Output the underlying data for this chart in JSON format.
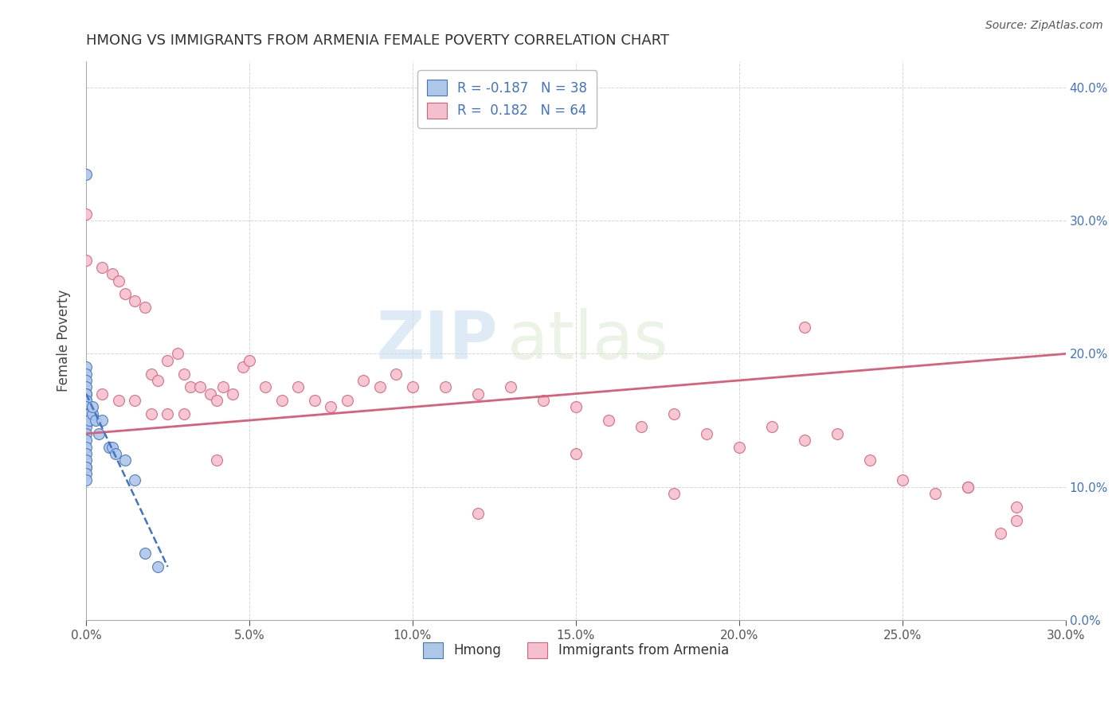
{
  "title": "HMONG VS IMMIGRANTS FROM ARMENIA FEMALE POVERTY CORRELATION CHART",
  "source": "Source: ZipAtlas.com",
  "ylabel_label": "Female Poverty",
  "legend_label1": "Hmong",
  "legend_label2": "Immigrants from Armenia",
  "R1": -0.187,
  "N1": 38,
  "R2": 0.182,
  "N2": 64,
  "xlim": [
    0.0,
    0.3
  ],
  "ylim": [
    0.0,
    0.42
  ],
  "xticks": [
    0.0,
    0.05,
    0.1,
    0.15,
    0.2,
    0.25,
    0.3
  ],
  "yticks": [
    0.0,
    0.1,
    0.2,
    0.3,
    0.4
  ],
  "color_blue": "#aec6e8",
  "color_pink": "#f5c0ce",
  "line_blue": "#4472c4",
  "line_pink": "#d9607a",
  "watermark_zip": "ZIP",
  "watermark_atlas": "atlas",
  "hmong_x": [
    0.0,
    0.0,
    0.0,
    0.0,
    0.0,
    0.0,
    0.0,
    0.0,
    0.0,
    0.0,
    0.0,
    0.0,
    0.0,
    0.0,
    0.0,
    0.0,
    0.0,
    0.0,
    0.0,
    0.0,
    0.0,
    0.0,
    0.0,
    0.0,
    0.001,
    0.001,
    0.002,
    0.002,
    0.003,
    0.004,
    0.005,
    0.007,
    0.008,
    0.009,
    0.012,
    0.015,
    0.018,
    0.022
  ],
  "hmong_y": [
    0.335,
    0.19,
    0.185,
    0.18,
    0.175,
    0.17,
    0.165,
    0.16,
    0.155,
    0.15,
    0.148,
    0.145,
    0.14,
    0.135,
    0.13,
    0.125,
    0.12,
    0.115,
    0.11,
    0.105,
    0.17,
    0.165,
    0.16,
    0.155,
    0.155,
    0.15,
    0.155,
    0.16,
    0.15,
    0.14,
    0.15,
    0.13,
    0.13,
    0.125,
    0.12,
    0.105,
    0.05,
    0.04
  ],
  "armenia_x": [
    0.0,
    0.0,
    0.0,
    0.005,
    0.008,
    0.01,
    0.012,
    0.015,
    0.018,
    0.02,
    0.022,
    0.025,
    0.028,
    0.03,
    0.032,
    0.035,
    0.038,
    0.04,
    0.042,
    0.045,
    0.048,
    0.05,
    0.055,
    0.06,
    0.065,
    0.07,
    0.075,
    0.08,
    0.085,
    0.09,
    0.095,
    0.1,
    0.11,
    0.12,
    0.13,
    0.14,
    0.15,
    0.16,
    0.17,
    0.18,
    0.19,
    0.2,
    0.21,
    0.22,
    0.23,
    0.24,
    0.25,
    0.26,
    0.27,
    0.28,
    0.285,
    0.005,
    0.01,
    0.015,
    0.02,
    0.025,
    0.03,
    0.04,
    0.15,
    0.18,
    0.22,
    0.27,
    0.285,
    0.12
  ],
  "armenia_y": [
    0.305,
    0.27,
    0.115,
    0.265,
    0.26,
    0.255,
    0.245,
    0.24,
    0.235,
    0.185,
    0.18,
    0.195,
    0.2,
    0.185,
    0.175,
    0.175,
    0.17,
    0.165,
    0.175,
    0.17,
    0.19,
    0.195,
    0.175,
    0.165,
    0.175,
    0.165,
    0.16,
    0.165,
    0.18,
    0.175,
    0.185,
    0.175,
    0.175,
    0.17,
    0.175,
    0.165,
    0.16,
    0.15,
    0.145,
    0.155,
    0.14,
    0.13,
    0.145,
    0.135,
    0.14,
    0.12,
    0.105,
    0.095,
    0.1,
    0.065,
    0.085,
    0.17,
    0.165,
    0.165,
    0.155,
    0.155,
    0.155,
    0.12,
    0.125,
    0.095,
    0.22,
    0.1,
    0.075,
    0.08
  ],
  "hmong_trend_x": [
    0.0,
    0.025
  ],
  "hmong_trend_y_start": 0.17,
  "hmong_trend_y_end": 0.04,
  "armenia_trend_x": [
    0.0,
    0.3
  ],
  "armenia_trend_y_start": 0.14,
  "armenia_trend_y_end": 0.2
}
